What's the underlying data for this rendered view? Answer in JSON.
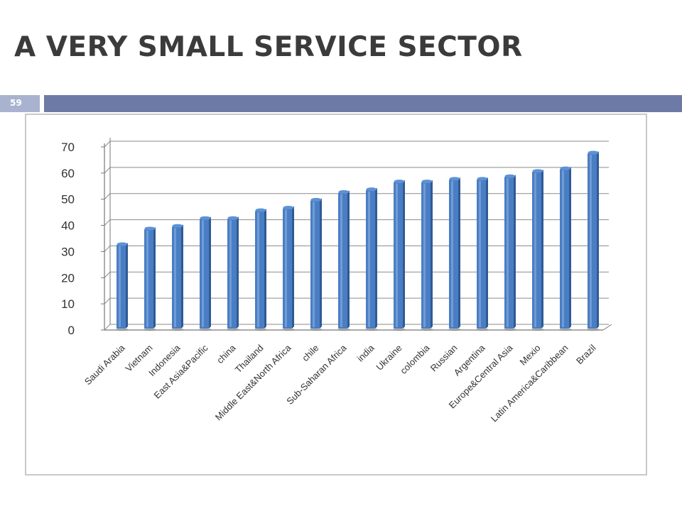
{
  "slide": {
    "title": "A VERY SMALL SERVICE SECTOR",
    "page_number": "59",
    "accent_color": "#6e7aa6",
    "badge_color": "#a9b3cf"
  },
  "chart_data": {
    "type": "bar",
    "title": "",
    "xlabel": "",
    "ylabel": "",
    "ylim": [
      0,
      70
    ],
    "yticks": [
      0,
      10,
      20,
      30,
      40,
      50,
      60,
      70
    ],
    "grid": true,
    "legend": "none",
    "bar_color": "#4a7ec4",
    "categories": [
      "Saudi Arabia",
      "Vietnam",
      "Indonesia",
      "East Asia&Pacific",
      "china",
      "Thailand",
      "Middle East&North Africa",
      "chile",
      "Sub-Saharan Africa",
      "india",
      "Ukraine",
      "colombia",
      "Russian",
      "Argentina",
      "Europe&Central Asia",
      "Mexio",
      "Latin America&Caribbean",
      "Brazil"
    ],
    "values": [
      32,
      38,
      39,
      42,
      42,
      45,
      46,
      49,
      52,
      53,
      56,
      56,
      57,
      57,
      58,
      60,
      61,
      67
    ]
  }
}
